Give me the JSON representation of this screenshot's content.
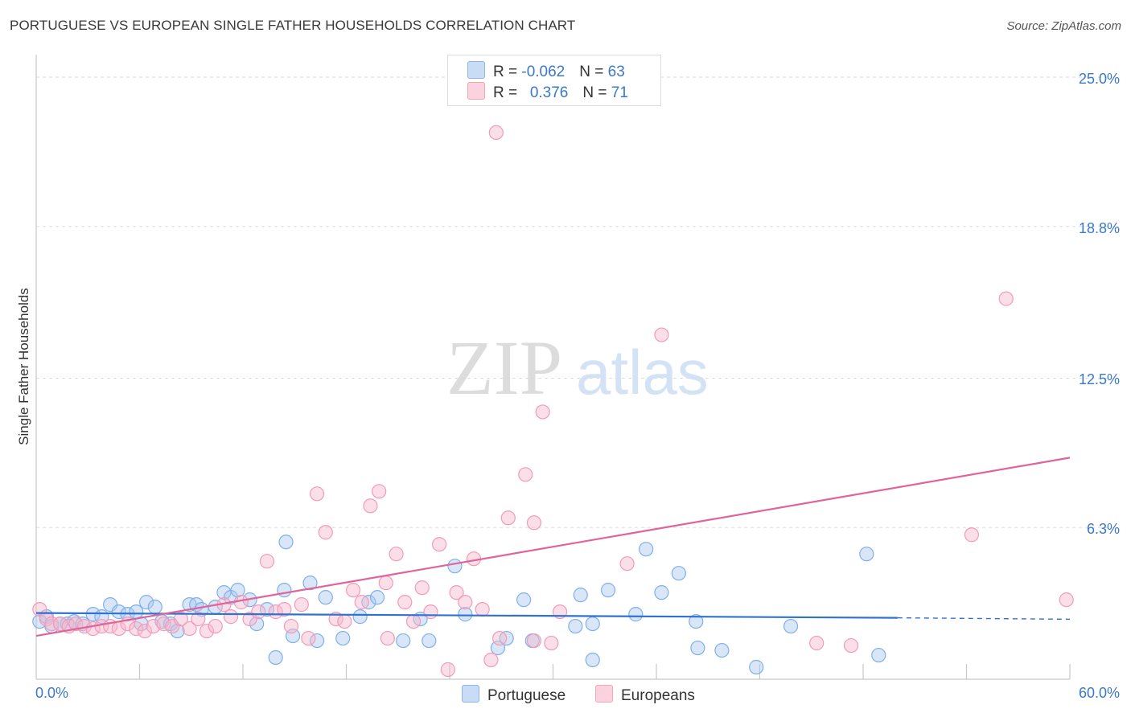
{
  "header": {
    "title": "PORTUGUESE VS EUROPEAN SINGLE FATHER HOUSEHOLDS CORRELATION CHART",
    "source": "Source: ZipAtlas.com"
  },
  "watermark": {
    "zip": "ZIP",
    "atlas": "atlas"
  },
  "legend": {
    "rows": [
      {
        "r_label": "R = ",
        "r_value": "-0.062",
        "n_label": "N = ",
        "n_value": "63",
        "color": "#a9c7ef"
      },
      {
        "r_label": "R = ",
        "r_value": "0.376",
        "n_label": "N = ",
        "n_value": "71",
        "color": "#f6b8cb"
      }
    ],
    "bottom": [
      {
        "label": "Portuguese",
        "color": "#a9c7ef"
      },
      {
        "label": "Europeans",
        "color": "#f6b8cb"
      }
    ]
  },
  "chart_data": {
    "type": "scatter",
    "title": "PORTUGUESE VS EUROPEAN SINGLE FATHER HOUSEHOLDS CORRELATION CHART",
    "xlabel": "",
    "ylabel": "Single Father Households",
    "xlim": [
      0,
      60
    ],
    "ylim": [
      0,
      25.6
    ],
    "x_tick_labels": [
      "0.0%",
      "60.0%"
    ],
    "y_ticks": [
      6.3,
      12.5,
      18.8,
      25.0
    ],
    "y_tick_labels": [
      "6.3%",
      "12.5%",
      "18.8%",
      "25.0%"
    ],
    "grid": true,
    "legend_position": "top-center",
    "series": [
      {
        "name": "Portuguese",
        "color": "#7fb0ea",
        "trend": {
          "x0": 0,
          "y0": 2.75,
          "x1": 50,
          "y1": 2.55,
          "x_dashed_end": 60,
          "y_dashed_end": 2.49,
          "color": "#2f72d1"
        },
        "points": [
          [
            0.2,
            2.4
          ],
          [
            0.6,
            2.6
          ],
          [
            0.9,
            2.2
          ],
          [
            1.4,
            2.3
          ],
          [
            1.8,
            2.3
          ],
          [
            2.2,
            2.4
          ],
          [
            2.7,
            2.3
          ],
          [
            3.3,
            2.7
          ],
          [
            3.8,
            2.6
          ],
          [
            4.3,
            3.1
          ],
          [
            4.8,
            2.8
          ],
          [
            5.3,
            2.7
          ],
          [
            5.8,
            2.8
          ],
          [
            6.1,
            2.3
          ],
          [
            6.4,
            3.2
          ],
          [
            6.9,
            3.0
          ],
          [
            7.3,
            2.4
          ],
          [
            7.8,
            2.3
          ],
          [
            8.2,
            2.0
          ],
          [
            8.9,
            3.1
          ],
          [
            9.3,
            3.1
          ],
          [
            9.6,
            2.9
          ],
          [
            10.4,
            3.0
          ],
          [
            10.9,
            3.6
          ],
          [
            11.3,
            3.4
          ],
          [
            11.7,
            3.7
          ],
          [
            12.4,
            3.3
          ],
          [
            12.8,
            2.3
          ],
          [
            13.4,
            2.9
          ],
          [
            13.9,
            0.9
          ],
          [
            14.4,
            3.7
          ],
          [
            14.5,
            5.7
          ],
          [
            14.9,
            1.8
          ],
          [
            15.9,
            4.0
          ],
          [
            16.3,
            1.6
          ],
          [
            16.8,
            3.4
          ],
          [
            17.8,
            1.7
          ],
          [
            18.8,
            2.6
          ],
          [
            19.3,
            3.2
          ],
          [
            19.8,
            3.4
          ],
          [
            21.3,
            1.6
          ],
          [
            22.3,
            2.5
          ],
          [
            22.8,
            1.6
          ],
          [
            24.3,
            4.7
          ],
          [
            24.9,
            2.7
          ],
          [
            26.8,
            1.3
          ],
          [
            27.3,
            1.7
          ],
          [
            28.3,
            3.3
          ],
          [
            28.8,
            1.6
          ],
          [
            31.3,
            2.2
          ],
          [
            31.6,
            3.5
          ],
          [
            32.3,
            0.8
          ],
          [
            32.3,
            2.3
          ],
          [
            33.2,
            3.7
          ],
          [
            34.8,
            2.7
          ],
          [
            35.4,
            5.4
          ],
          [
            36.3,
            3.6
          ],
          [
            37.3,
            4.4
          ],
          [
            38.3,
            2.4
          ],
          [
            38.4,
            1.3
          ],
          [
            39.8,
            1.2
          ],
          [
            41.8,
            0.5
          ],
          [
            43.8,
            2.2
          ],
          [
            48.2,
            5.2
          ],
          [
            48.9,
            1.0
          ]
        ]
      },
      {
        "name": "Europeans",
        "color": "#f49ab7",
        "trend": {
          "x0": 0,
          "y0": 1.8,
          "x1": 60,
          "y1": 9.2,
          "color": "#e0649a"
        },
        "points": [
          [
            0.2,
            2.9
          ],
          [
            0.6,
            2.5
          ],
          [
            0.9,
            2.3
          ],
          [
            1.4,
            2.3
          ],
          [
            1.9,
            2.2
          ],
          [
            2.3,
            2.3
          ],
          [
            2.8,
            2.2
          ],
          [
            3.3,
            2.1
          ],
          [
            3.8,
            2.2
          ],
          [
            4.3,
            2.2
          ],
          [
            4.8,
            2.1
          ],
          [
            5.3,
            2.3
          ],
          [
            5.8,
            2.1
          ],
          [
            6.3,
            2.0
          ],
          [
            6.8,
            2.2
          ],
          [
            7.4,
            2.3
          ],
          [
            7.9,
            2.2
          ],
          [
            8.4,
            2.5
          ],
          [
            8.9,
            2.1
          ],
          [
            9.4,
            2.5
          ],
          [
            9.9,
            2.0
          ],
          [
            10.4,
            2.2
          ],
          [
            10.9,
            3.1
          ],
          [
            11.3,
            2.6
          ],
          [
            11.9,
            3.2
          ],
          [
            12.4,
            2.5
          ],
          [
            12.9,
            2.8
          ],
          [
            13.4,
            4.9
          ],
          [
            13.9,
            2.8
          ],
          [
            14.4,
            2.9
          ],
          [
            14.8,
            2.2
          ],
          [
            15.4,
            3.1
          ],
          [
            15.8,
            1.7
          ],
          [
            16.3,
            7.7
          ],
          [
            16.8,
            6.1
          ],
          [
            17.4,
            2.5
          ],
          [
            17.9,
            2.4
          ],
          [
            18.4,
            3.7
          ],
          [
            18.9,
            3.2
          ],
          [
            19.4,
            7.2
          ],
          [
            19.9,
            7.8
          ],
          [
            20.4,
            1.7
          ],
          [
            20.9,
            5.2
          ],
          [
            21.4,
            3.2
          ],
          [
            21.9,
            2.4
          ],
          [
            22.4,
            3.8
          ],
          [
            22.9,
            2.8
          ],
          [
            23.4,
            5.6
          ],
          [
            23.9,
            0.4
          ],
          [
            24.4,
            3.6
          ],
          [
            24.9,
            3.2
          ],
          [
            25.4,
            5.0
          ],
          [
            25.9,
            2.9
          ],
          [
            26.4,
            0.8
          ],
          [
            26.9,
            1.7
          ],
          [
            26.7,
            22.7
          ],
          [
            27.4,
            6.7
          ],
          [
            28.4,
            8.5
          ],
          [
            28.9,
            1.6
          ],
          [
            29.4,
            11.1
          ],
          [
            29.9,
            1.5
          ],
          [
            30.4,
            2.8
          ],
          [
            34.3,
            4.8
          ],
          [
            36.3,
            14.3
          ],
          [
            45.3,
            1.5
          ],
          [
            47.3,
            1.4
          ],
          [
            54.3,
            6.0
          ],
          [
            56.3,
            15.8
          ],
          [
            59.8,
            3.3
          ],
          [
            28.9,
            6.5
          ],
          [
            20.3,
            4.0
          ]
        ]
      }
    ]
  }
}
